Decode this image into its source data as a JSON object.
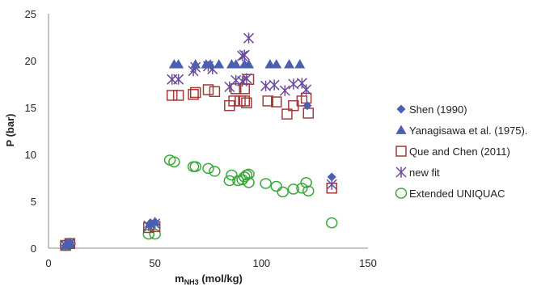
{
  "chart_data": {
    "type": "scatter",
    "xlabel_main": "m",
    "xlabel_sub": "NH3",
    "xlabel_tail": " (mol/kg)",
    "ylabel": "P (bar)",
    "xlim": [
      0,
      150
    ],
    "ylim": [
      0,
      25
    ],
    "xticks": [
      0,
      50,
      100,
      150
    ],
    "yticks": [
      0,
      5,
      10,
      15,
      20,
      25
    ],
    "grid": false,
    "legend_position": "right",
    "series": [
      {
        "name": "Shen (1990)",
        "marker": "diamond",
        "color": "#4a5fb0",
        "points": [
          [
            8,
            0.3
          ],
          [
            9.5,
            0.5
          ],
          [
            10,
            0.6
          ],
          [
            47.5,
            2.6
          ],
          [
            50,
            2.8
          ],
          [
            121.5,
            15.2
          ],
          [
            133,
            7.6
          ]
        ]
      },
      {
        "name": "Yanagisawa et al. (1975).",
        "marker": "triangle",
        "color": "#4a5fb0",
        "points": [
          [
            8,
            0.3
          ],
          [
            9.5,
            0.5
          ],
          [
            10,
            0.6
          ],
          [
            47.5,
            2.6
          ],
          [
            50,
            2.8
          ],
          [
            59,
            19.6
          ],
          [
            61,
            19.6
          ],
          [
            69,
            19.6
          ],
          [
            74,
            19.6
          ],
          [
            76,
            19.6
          ],
          [
            80,
            19.6
          ],
          [
            86,
            19.6
          ],
          [
            88,
            19.6
          ],
          [
            92,
            19.6
          ],
          [
            94,
            19.6
          ],
          [
            104,
            19.6
          ],
          [
            107,
            19.6
          ],
          [
            113,
            19.6
          ],
          [
            118,
            19.6
          ]
        ]
      },
      {
        "name": "Que and Chen (2011)",
        "marker": "square",
        "color": "#a33b3b",
        "points": [
          [
            8,
            0.3
          ],
          [
            10,
            0.5
          ],
          [
            47,
            2.2
          ],
          [
            50,
            2.3
          ],
          [
            58,
            16.3
          ],
          [
            61,
            16.3
          ],
          [
            68,
            16.4
          ],
          [
            69,
            16.6
          ],
          [
            75,
            16.9
          ],
          [
            78,
            16.7
          ],
          [
            85,
            15.2
          ],
          [
            87,
            15.7
          ],
          [
            88,
            17.0
          ],
          [
            90,
            15.7
          ],
          [
            92,
            17.0
          ],
          [
            92,
            15.7
          ],
          [
            93,
            15.5
          ],
          [
            94,
            18.0
          ],
          [
            103,
            15.7
          ],
          [
            107,
            15.6
          ],
          [
            112,
            14.3
          ],
          [
            115,
            15.2
          ],
          [
            119,
            15.7
          ],
          [
            121,
            16.0
          ],
          [
            122,
            14.4
          ],
          [
            133,
            6.4
          ]
        ]
      },
      {
        "name": "new fit",
        "marker": "star",
        "color": "#6a4a9c",
        "points": [
          [
            8,
            0.3
          ],
          [
            10,
            0.5
          ],
          [
            47,
            2.4
          ],
          [
            50,
            2.6
          ],
          [
            58,
            18.0
          ],
          [
            61,
            18.0
          ],
          [
            68,
            18.9
          ],
          [
            69,
            19.3
          ],
          [
            75,
            19.4
          ],
          [
            77,
            19.1
          ],
          [
            85,
            17.2
          ],
          [
            88,
            17.9
          ],
          [
            91,
            17.8
          ],
          [
            91,
            20.5
          ],
          [
            92,
            20.6
          ],
          [
            93,
            18.1
          ],
          [
            94,
            22.4
          ],
          [
            102,
            17.3
          ],
          [
            106,
            17.4
          ],
          [
            111,
            16.8
          ],
          [
            115,
            17.5
          ],
          [
            119,
            17.6
          ],
          [
            121,
            16.9
          ],
          [
            133,
            6.8
          ]
        ]
      },
      {
        "name": "Extended UNIQUAC",
        "marker": "circle",
        "color": "#3aa63a",
        "points": [
          [
            8,
            0.3
          ],
          [
            10,
            0.5
          ],
          [
            47,
            1.5
          ],
          [
            50,
            1.5
          ],
          [
            57,
            9.4
          ],
          [
            59,
            9.2
          ],
          [
            68,
            8.7
          ],
          [
            69,
            8.7
          ],
          [
            75,
            8.5
          ],
          [
            78,
            8.2
          ],
          [
            85,
            7.2
          ],
          [
            86,
            7.8
          ],
          [
            89,
            7.2
          ],
          [
            91,
            7.3
          ],
          [
            92,
            7.6
          ],
          [
            93,
            7.8
          ],
          [
            94,
            7.0
          ],
          [
            94,
            7.9
          ],
          [
            102,
            6.9
          ],
          [
            107,
            6.6
          ],
          [
            110,
            6.0
          ],
          [
            115,
            6.3
          ],
          [
            119,
            6.4
          ],
          [
            121,
            7.0
          ],
          [
            122,
            6.1
          ],
          [
            133,
            2.7
          ]
        ]
      }
    ]
  }
}
